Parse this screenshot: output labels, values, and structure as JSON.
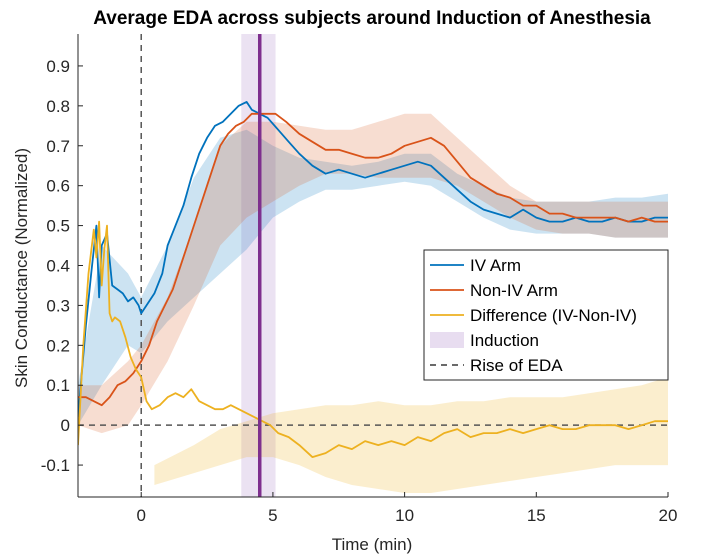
{
  "chart_data": {
    "type": "line",
    "title": "Average EDA across subjects around Induction of Anesthesia",
    "xlabel": "Time (min)",
    "ylabel": "Skin Conductance (Normalized)",
    "xlim": [
      -2.4,
      20
    ],
    "ylim": [
      -0.18,
      0.98
    ],
    "xticks": [
      0,
      5,
      10,
      15,
      20
    ],
    "yticks": [
      -0.1,
      0,
      0.1,
      0.2,
      0.3,
      0.4,
      0.5,
      0.6,
      0.7,
      0.8,
      0.9
    ],
    "xtick_labels": [
      "0",
      "5",
      "10",
      "15",
      "20"
    ],
    "ytick_labels": [
      "-0.1",
      "0",
      "0.1",
      "0.2",
      "0.3",
      "0.4",
      "0.5",
      "0.6",
      "0.7",
      "0.8",
      "0.9"
    ],
    "grid": false,
    "legend_position": "right",
    "series": [
      {
        "name": "IV Arm",
        "color": "#0072BD",
        "x": [
          -2.4,
          -2.1,
          -1.9,
          -1.7,
          -1.6,
          -1.5,
          -1.3,
          -1.1,
          -0.9,
          -0.7,
          -0.5,
          -0.3,
          -0.1,
          0.0,
          0.2,
          0.5,
          0.8,
          1.0,
          1.3,
          1.6,
          1.9,
          2.2,
          2.5,
          2.8,
          3.1,
          3.4,
          3.7,
          4.0,
          4.2,
          4.5,
          4.8,
          5.2,
          5.6,
          6.0,
          6.5,
          7.0,
          7.5,
          8.0,
          8.5,
          9.0,
          9.5,
          10.0,
          10.5,
          11.0,
          11.5,
          12.0,
          12.5,
          13.0,
          13.5,
          14.0,
          14.5,
          15.0,
          15.5,
          16.0,
          16.5,
          17.0,
          17.5,
          18.0,
          18.5,
          19.0,
          19.5,
          20.0
        ],
        "values": [
          0.02,
          0.25,
          0.38,
          0.5,
          0.32,
          0.45,
          0.48,
          0.35,
          0.34,
          0.33,
          0.31,
          0.32,
          0.3,
          0.28,
          0.3,
          0.33,
          0.38,
          0.45,
          0.5,
          0.55,
          0.62,
          0.68,
          0.72,
          0.75,
          0.76,
          0.78,
          0.8,
          0.81,
          0.79,
          0.78,
          0.77,
          0.74,
          0.71,
          0.68,
          0.65,
          0.63,
          0.64,
          0.63,
          0.62,
          0.63,
          0.64,
          0.65,
          0.66,
          0.65,
          0.62,
          0.59,
          0.56,
          0.54,
          0.53,
          0.52,
          0.54,
          0.52,
          0.51,
          0.51,
          0.52,
          0.51,
          0.51,
          0.52,
          0.51,
          0.51,
          0.52,
          0.52
        ]
      },
      {
        "name": "Non-IV Arm",
        "color": "#D95319",
        "x": [
          -2.4,
          -2.1,
          -1.8,
          -1.5,
          -1.2,
          -0.9,
          -0.6,
          -0.3,
          0.0,
          0.3,
          0.6,
          0.9,
          1.2,
          1.5,
          1.8,
          2.1,
          2.4,
          2.7,
          3.0,
          3.3,
          3.6,
          3.9,
          4.2,
          4.5,
          4.8,
          5.1,
          5.5,
          6.0,
          6.5,
          7.0,
          7.5,
          8.0,
          8.5,
          9.0,
          9.5,
          10.0,
          10.5,
          11.0,
          11.5,
          12.0,
          12.5,
          13.0,
          13.5,
          14.0,
          14.5,
          15.0,
          15.5,
          16.0,
          16.5,
          17.0,
          17.5,
          18.0,
          18.5,
          19.0,
          19.5,
          20.0
        ],
        "values": [
          0.07,
          0.07,
          0.06,
          0.05,
          0.07,
          0.1,
          0.11,
          0.13,
          0.16,
          0.2,
          0.26,
          0.3,
          0.34,
          0.4,
          0.46,
          0.52,
          0.58,
          0.64,
          0.7,
          0.73,
          0.75,
          0.76,
          0.78,
          0.78,
          0.78,
          0.78,
          0.76,
          0.73,
          0.71,
          0.69,
          0.69,
          0.68,
          0.67,
          0.67,
          0.68,
          0.7,
          0.71,
          0.72,
          0.7,
          0.66,
          0.62,
          0.6,
          0.58,
          0.57,
          0.55,
          0.55,
          0.53,
          0.53,
          0.52,
          0.52,
          0.52,
          0.52,
          0.51,
          0.52,
          0.51,
          0.51
        ]
      },
      {
        "name": "Difference (IV-Non-IV)",
        "color": "#EDB120",
        "x": [
          -2.4,
          -2.2,
          -2.0,
          -1.8,
          -1.7,
          -1.6,
          -1.5,
          -1.4,
          -1.3,
          -1.2,
          -1.1,
          -1.0,
          -0.8,
          -0.6,
          -0.4,
          -0.2,
          0.0,
          0.2,
          0.4,
          0.7,
          1.0,
          1.3,
          1.6,
          1.9,
          2.2,
          2.5,
          2.8,
          3.1,
          3.4,
          3.7,
          4.0,
          4.3,
          4.6,
          4.9,
          5.2,
          5.6,
          6.0,
          6.5,
          7.0,
          7.5,
          8.0,
          8.5,
          9.0,
          9.5,
          10.0,
          10.5,
          11.0,
          11.5,
          12.0,
          12.5,
          13.0,
          13.5,
          14.0,
          14.5,
          15.0,
          15.5,
          16.0,
          16.5,
          17.0,
          17.5,
          18.0,
          18.5,
          19.0,
          19.5,
          20.0
        ],
        "values": [
          -0.05,
          0.2,
          0.38,
          0.49,
          0.42,
          0.51,
          0.35,
          0.44,
          0.5,
          0.28,
          0.26,
          0.27,
          0.26,
          0.22,
          0.17,
          0.14,
          0.12,
          0.06,
          0.04,
          0.05,
          0.07,
          0.08,
          0.07,
          0.09,
          0.06,
          0.05,
          0.04,
          0.04,
          0.05,
          0.04,
          0.03,
          0.02,
          0.01,
          0.0,
          -0.02,
          -0.03,
          -0.05,
          -0.08,
          -0.07,
          -0.05,
          -0.06,
          -0.04,
          -0.05,
          -0.04,
          -0.05,
          -0.03,
          -0.04,
          -0.02,
          -0.01,
          -0.03,
          -0.02,
          -0.02,
          -0.01,
          -0.02,
          -0.01,
          0.0,
          -0.01,
          -0.01,
          0.0,
          0.0,
          0.0,
          -0.01,
          0.0,
          0.01,
          0.01
        ]
      }
    ],
    "bands": [
      {
        "color": "#0072BD",
        "opacity": 0.2,
        "x": [
          -2.4,
          -1.5,
          -0.5,
          0.0,
          1.0,
          2.0,
          3.0,
          4.0,
          5.0,
          6.0,
          7.0,
          8.0,
          9.0,
          10.0,
          11.0,
          12.0,
          13.0,
          14.0,
          15.0,
          16.0,
          17.0,
          18.0,
          19.0,
          20.0
        ],
        "upper": [
          0.1,
          0.45,
          0.38,
          0.32,
          0.45,
          0.62,
          0.72,
          0.74,
          0.7,
          0.67,
          0.66,
          0.65,
          0.66,
          0.68,
          0.68,
          0.63,
          0.6,
          0.57,
          0.56,
          0.56,
          0.56,
          0.57,
          0.57,
          0.58
        ],
        "lower": [
          0.0,
          0.1,
          0.2,
          0.18,
          0.26,
          0.32,
          0.38,
          0.44,
          0.52,
          0.56,
          0.59,
          0.59,
          0.6,
          0.61,
          0.6,
          0.56,
          0.52,
          0.49,
          0.48,
          0.48,
          0.48,
          0.47,
          0.47,
          0.47
        ]
      },
      {
        "color": "#D95319",
        "opacity": 0.2,
        "x": [
          -2.4,
          -1.5,
          -0.5,
          0.0,
          1.0,
          2.0,
          3.0,
          4.0,
          5.0,
          6.0,
          7.0,
          8.0,
          9.0,
          10.0,
          11.0,
          12.0,
          13.0,
          14.0,
          15.0,
          16.0,
          17.0,
          18.0,
          19.0,
          20.0
        ],
        "upper": [
          0.1,
          0.1,
          0.16,
          0.2,
          0.32,
          0.5,
          0.7,
          0.76,
          0.76,
          0.75,
          0.74,
          0.74,
          0.76,
          0.78,
          0.78,
          0.72,
          0.66,
          0.6,
          0.56,
          0.56,
          0.56,
          0.56,
          0.56,
          0.56
        ],
        "lower": [
          0.0,
          -0.02,
          0.0,
          0.05,
          0.16,
          0.3,
          0.45,
          0.52,
          0.56,
          0.6,
          0.63,
          0.63,
          0.62,
          0.62,
          0.62,
          0.6,
          0.56,
          0.52,
          0.49,
          0.48,
          0.48,
          0.47,
          0.47,
          0.47
        ]
      },
      {
        "color": "#EDB120",
        "opacity": 0.22,
        "x": [
          0.5,
          2.0,
          3.0,
          4.0,
          5.0,
          6.0,
          7.0,
          8.0,
          9.0,
          10.0,
          11.0,
          12.0,
          13.0,
          14.0,
          15.0,
          16.0,
          17.0,
          18.0,
          19.0,
          20.0
        ],
        "upper": [
          -0.1,
          -0.05,
          -0.01,
          0.01,
          0.03,
          0.04,
          0.05,
          0.05,
          0.06,
          0.05,
          0.05,
          0.06,
          0.06,
          0.07,
          0.07,
          0.07,
          0.08,
          0.09,
          0.1,
          0.12
        ],
        "lower": [
          -0.15,
          -0.12,
          -0.1,
          -0.08,
          -0.08,
          -0.1,
          -0.13,
          -0.15,
          -0.16,
          -0.17,
          -0.17,
          -0.16,
          -0.15,
          -0.14,
          -0.13,
          -0.12,
          -0.11,
          -0.1,
          -0.1,
          -0.1
        ]
      }
    ],
    "induction": {
      "label": "Induction",
      "time": 4.5,
      "band": [
        3.8,
        5.1
      ],
      "line_color": "#7E2F8E",
      "band_color": "#E8DDF0"
    },
    "rise_of_eda": {
      "label": "Rise of EDA",
      "time": 0,
      "color": "#555555"
    },
    "zero_line": {
      "y": 0,
      "color": "#555555"
    },
    "legend": [
      {
        "label": "IV Arm",
        "style": "line",
        "color": "#0072BD"
      },
      {
        "label": "Non-IV Arm",
        "style": "line",
        "color": "#D95319"
      },
      {
        "label": "Difference (IV-Non-IV)",
        "style": "line",
        "color": "#EDB120"
      },
      {
        "label": "Induction",
        "style": "patch",
        "color": "#E8DDF0"
      },
      {
        "label": "Rise of EDA",
        "style": "dashed",
        "color": "#555555"
      }
    ]
  }
}
